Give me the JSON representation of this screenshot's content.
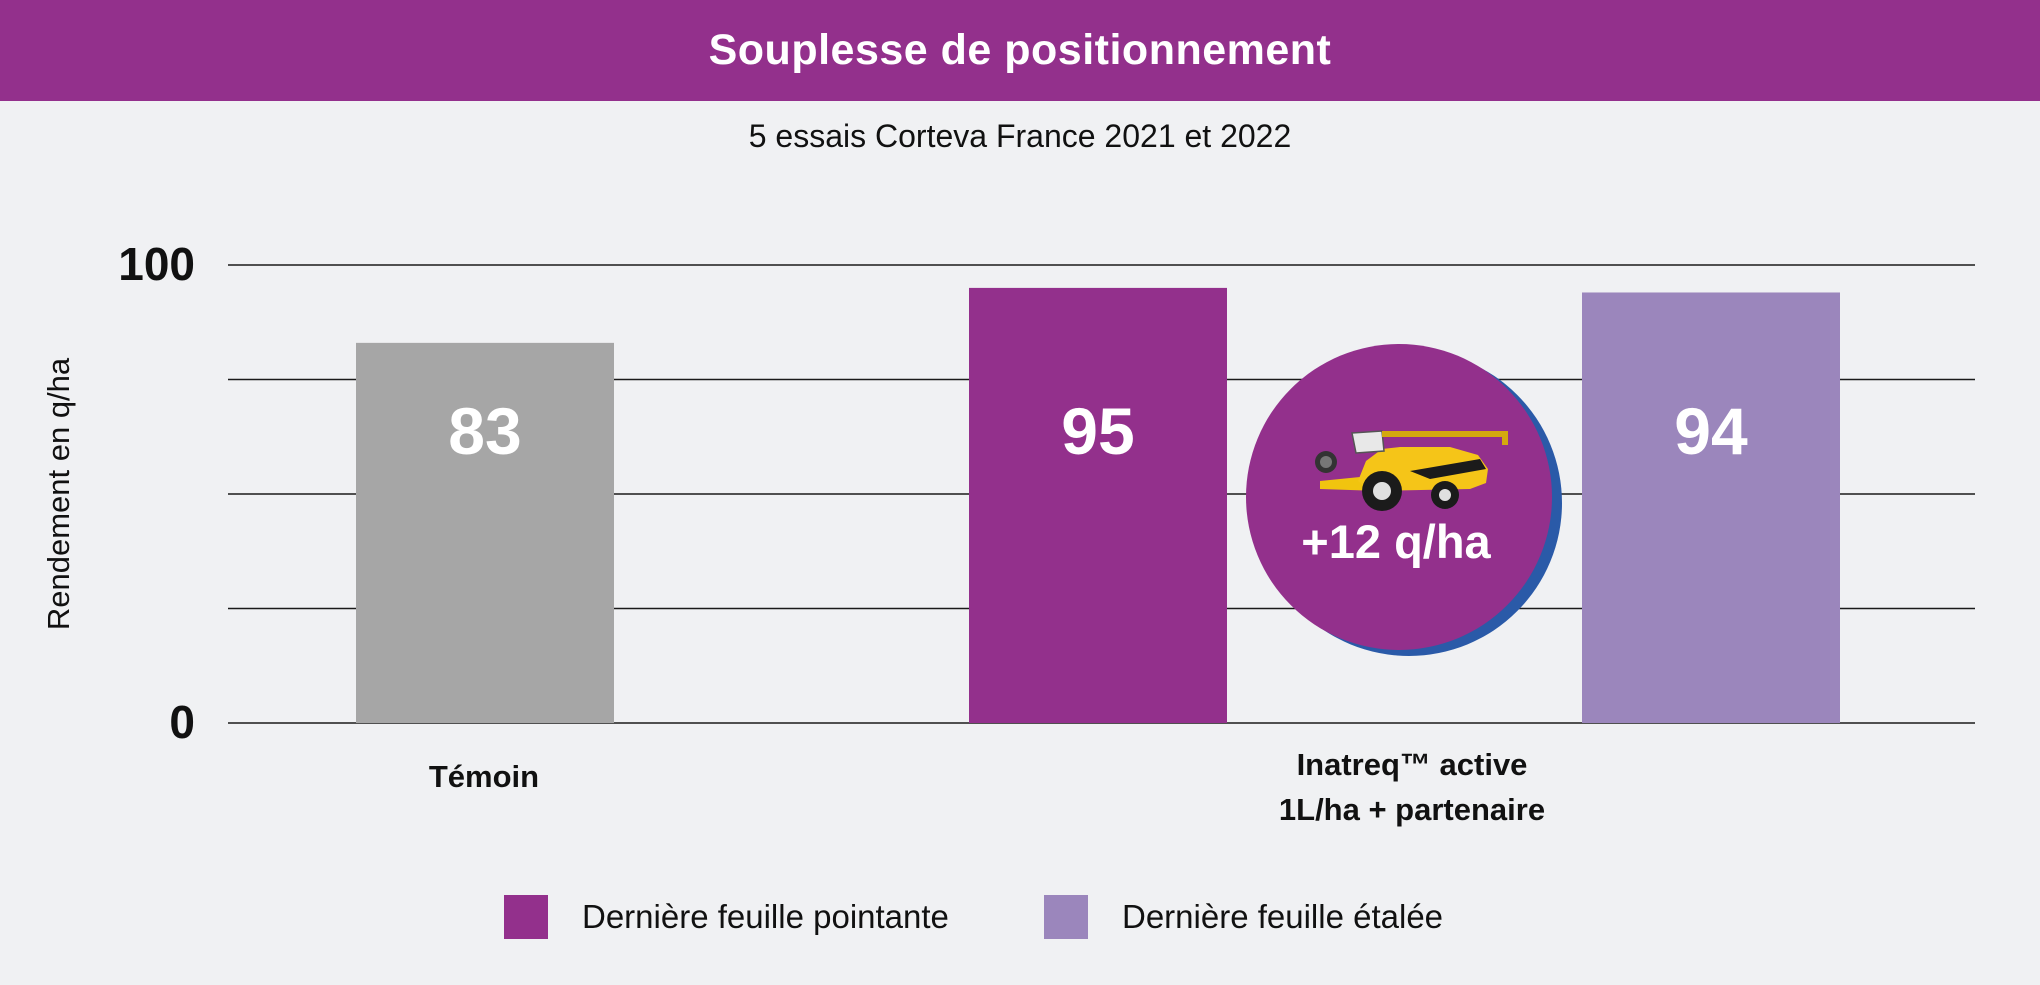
{
  "header": {
    "title": "Souplesse de positionnement"
  },
  "subtitle": "5 essais Corteva France 2021 et 2022",
  "colors": {
    "header_bg": "#93308c",
    "temoin": "#a6a6a6",
    "pointante": "#93308c",
    "etalee": "#9b86bc",
    "badge": "#93308c",
    "badge_shadow": "#2a5aa8"
  },
  "chart_data": {
    "type": "bar",
    "title": "",
    "ylabel": "Rendement en q/ha",
    "ylim": [
      0,
      100
    ],
    "yticks": [
      {
        "value": 0,
        "label": "0"
      },
      {
        "value": 25,
        "label": ""
      },
      {
        "value": 50,
        "label": ""
      },
      {
        "value": 75,
        "label": ""
      },
      {
        "value": 100,
        "label": "100"
      }
    ],
    "grid": true,
    "groups": [
      {
        "label_lines": [
          "Témoin"
        ],
        "bars": [
          {
            "series": "temoin",
            "value": 83,
            "label": "83"
          }
        ]
      },
      {
        "label_lines": [
          "Inatreq™ active",
          "1L/ha + partenaire"
        ],
        "bars": [
          {
            "series": "pointante",
            "value": 95,
            "label": "95"
          },
          {
            "series": "etalee",
            "value": 94,
            "label": "94"
          }
        ]
      }
    ],
    "series": [
      {
        "key": "pointante",
        "name": "Dernière feuille pointante"
      },
      {
        "key": "etalee",
        "name": "Dernière feuille étalée"
      }
    ],
    "annotation": {
      "text": "+12 q/ha",
      "icon": "combine-harvester-icon"
    }
  }
}
